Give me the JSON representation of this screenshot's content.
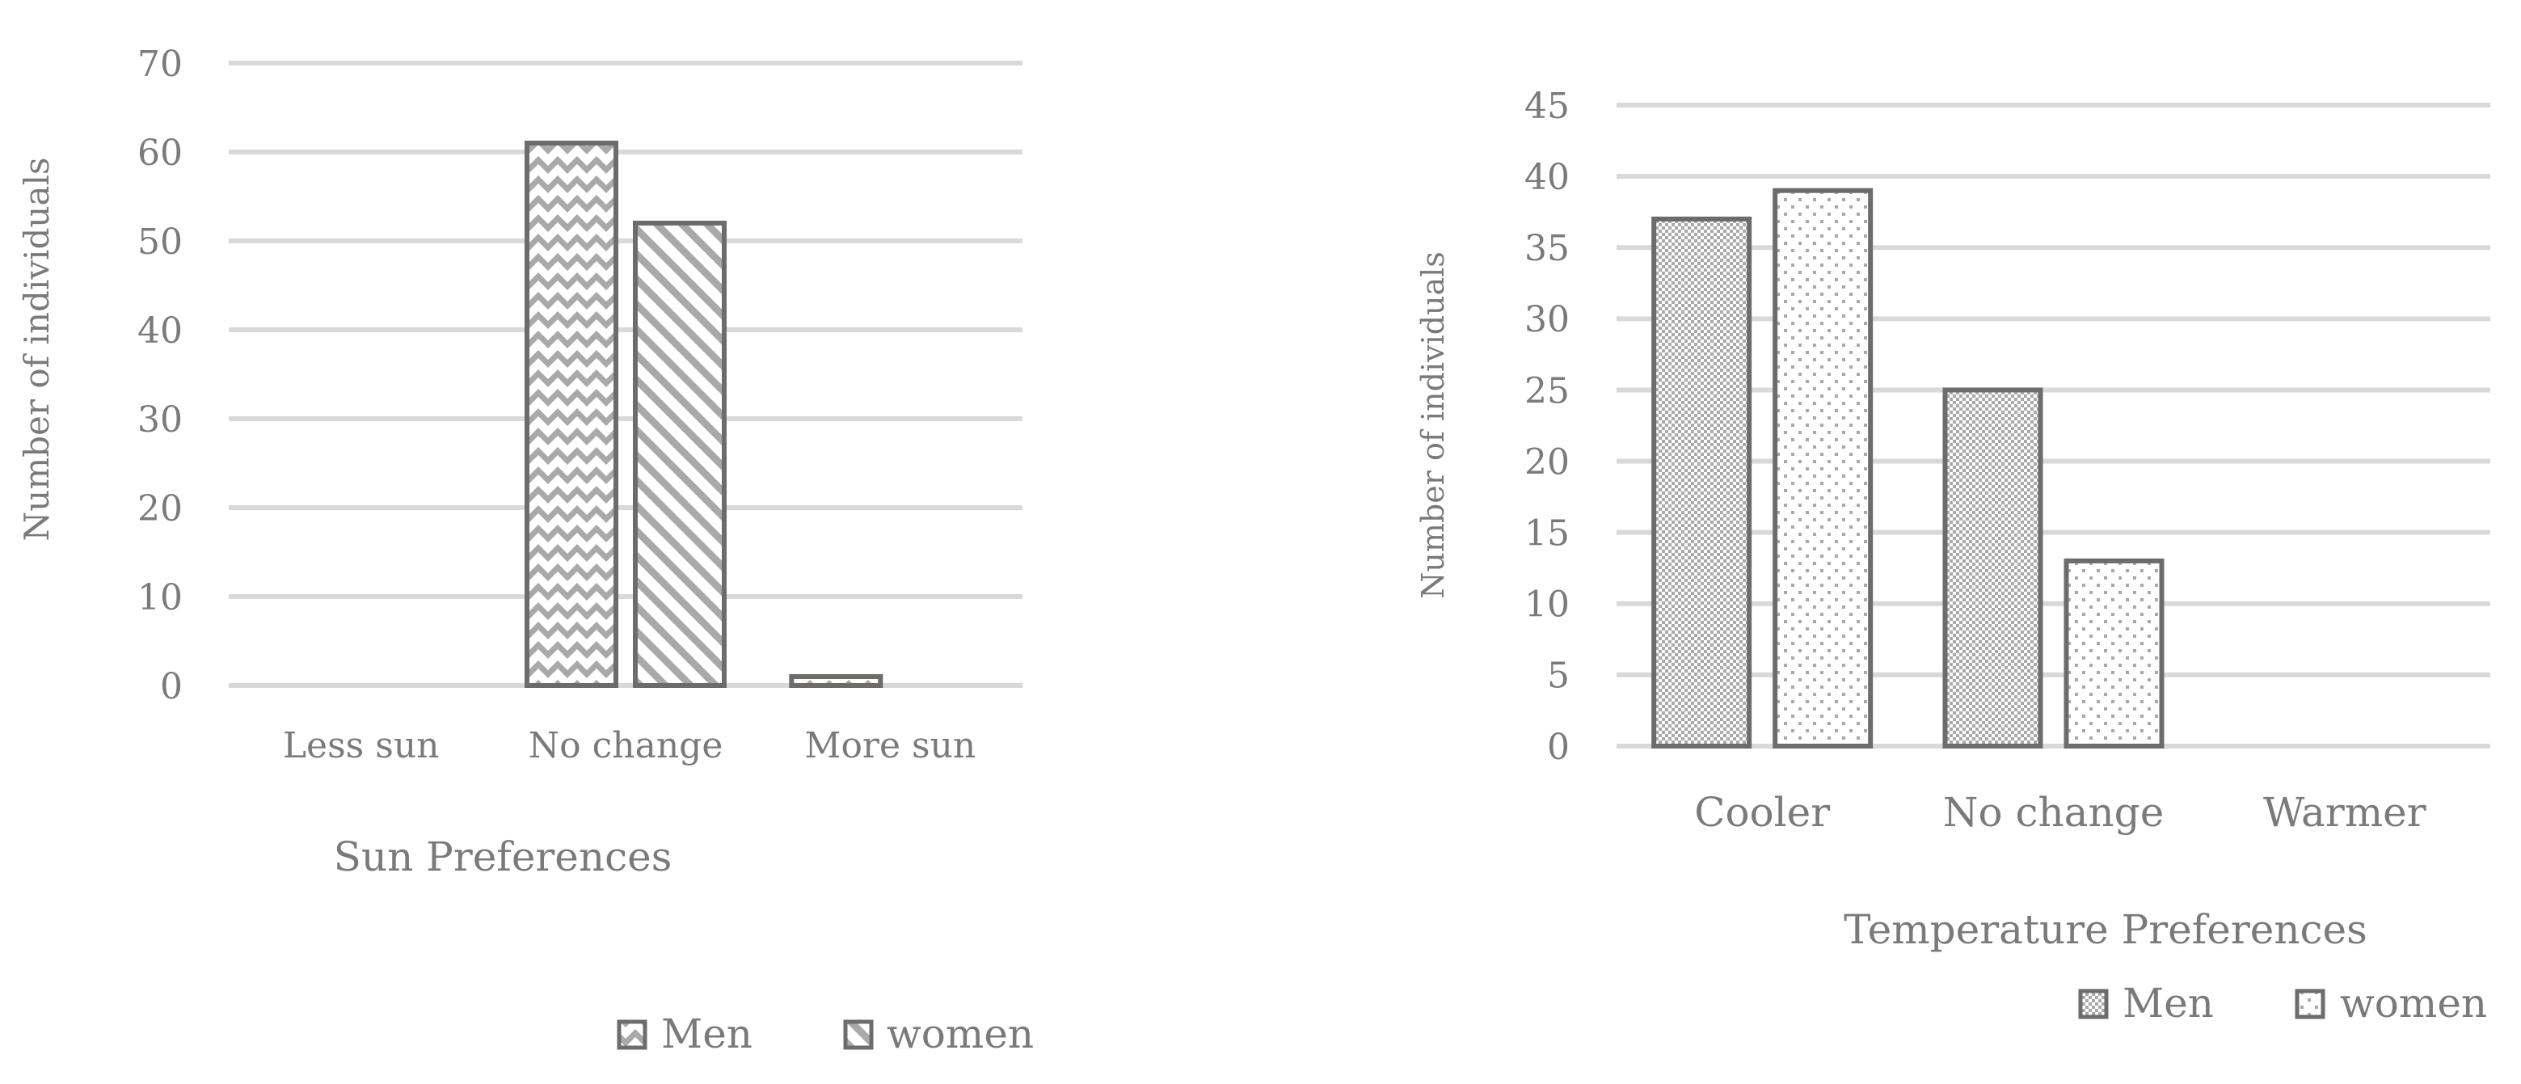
{
  "colors": {
    "grid": "#d9d9d9",
    "bar_stroke": "#6e6b6b",
    "hatch": "#a9a9a9",
    "text": "#7a7a7a"
  },
  "chart_data": [
    {
      "type": "bar",
      "xlabel": "Sun Preferences",
      "ylabel": "Number of individuals",
      "categories": [
        "Less sun",
        "No change",
        "More sun"
      ],
      "ylim": [
        0,
        70
      ],
      "yticks": [
        0,
        10,
        20,
        30,
        40,
        50,
        60,
        70
      ],
      "grid": true,
      "legend_position": "bottom",
      "series": [
        {
          "name": "Men",
          "values": [
            0,
            61,
            1
          ],
          "pattern": "zigzag"
        },
        {
          "name": "women",
          "values": [
            0,
            52,
            0
          ],
          "pattern": "diagonal"
        }
      ]
    },
    {
      "type": "bar",
      "xlabel": "Temperature Preferences",
      "ylabel": "Number of individuals",
      "categories": [
        "Cooler",
        "No change",
        "Warmer"
      ],
      "ylim": [
        0,
        45
      ],
      "yticks": [
        0,
        5,
        10,
        15,
        20,
        25,
        30,
        35,
        40,
        45
      ],
      "grid": true,
      "legend_position": "bottom-right",
      "series": [
        {
          "name": "Men",
          "values": [
            37,
            25,
            0
          ],
          "pattern": "checker"
        },
        {
          "name": "women",
          "values": [
            39,
            13,
            0
          ],
          "pattern": "dots"
        }
      ]
    }
  ]
}
